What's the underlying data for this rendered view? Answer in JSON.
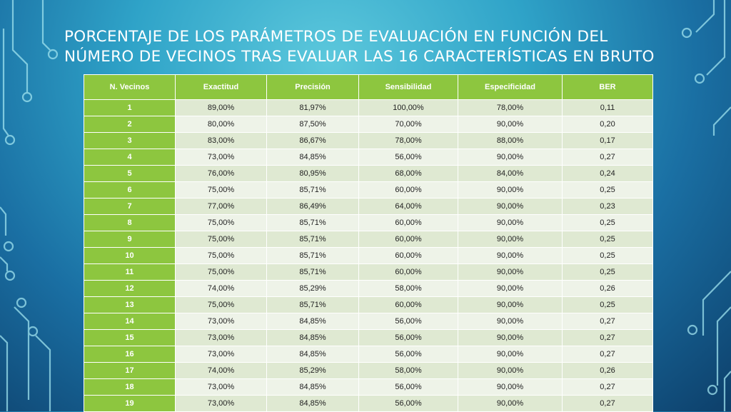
{
  "slide": {
    "title_line1": "PORCENTAJE DE LOS PARÁMETROS DE EVALUACIÓN EN FUNCIÓN DEL",
    "title_line2": "NÚMERO DE VECINOS TRAS EVALUAR LAS 16 CARACTERÍSTICAS EN BRUTO"
  },
  "colors": {
    "header_green": "#8dc63f",
    "row_light": "#eef3e8",
    "row_dark": "#dfe9d2"
  },
  "table": {
    "headers": [
      "N. Vecinos",
      "Exactitud",
      "Precisión",
      "Sensibilidad",
      "Especificidad",
      "BER"
    ],
    "rows": [
      [
        "1",
        "89,00%",
        "81,97%",
        "100,00%",
        "78,00%",
        "0,11"
      ],
      [
        "2",
        "80,00%",
        "87,50%",
        "70,00%",
        "90,00%",
        "0,20"
      ],
      [
        "3",
        "83,00%",
        "86,67%",
        "78,00%",
        "88,00%",
        "0,17"
      ],
      [
        "4",
        "73,00%",
        "84,85%",
        "56,00%",
        "90,00%",
        "0,27"
      ],
      [
        "5",
        "76,00%",
        "80,95%",
        "68,00%",
        "84,00%",
        "0,24"
      ],
      [
        "6",
        "75,00%",
        "85,71%",
        "60,00%",
        "90,00%",
        "0,25"
      ],
      [
        "7",
        "77,00%",
        "86,49%",
        "64,00%",
        "90,00%",
        "0,23"
      ],
      [
        "8",
        "75,00%",
        "85,71%",
        "60,00%",
        "90,00%",
        "0,25"
      ],
      [
        "9",
        "75,00%",
        "85,71%",
        "60,00%",
        "90,00%",
        "0,25"
      ],
      [
        "10",
        "75,00%",
        "85,71%",
        "60,00%",
        "90,00%",
        "0,25"
      ],
      [
        "11",
        "75,00%",
        "85,71%",
        "60,00%",
        "90,00%",
        "0,25"
      ],
      [
        "12",
        "74,00%",
        "85,29%",
        "58,00%",
        "90,00%",
        "0,26"
      ],
      [
        "13",
        "75,00%",
        "85,71%",
        "60,00%",
        "90,00%",
        "0,25"
      ],
      [
        "14",
        "73,00%",
        "84,85%",
        "56,00%",
        "90,00%",
        "0,27"
      ],
      [
        "15",
        "73,00%",
        "84,85%",
        "56,00%",
        "90,00%",
        "0,27"
      ],
      [
        "16",
        "73,00%",
        "84,85%",
        "56,00%",
        "90,00%",
        "0,27"
      ],
      [
        "17",
        "74,00%",
        "85,29%",
        "58,00%",
        "90,00%",
        "0,26"
      ],
      [
        "18",
        "73,00%",
        "84,85%",
        "56,00%",
        "90,00%",
        "0,27"
      ],
      [
        "19",
        "73,00%",
        "84,85%",
        "56,00%",
        "90,00%",
        "0,27"
      ]
    ]
  }
}
